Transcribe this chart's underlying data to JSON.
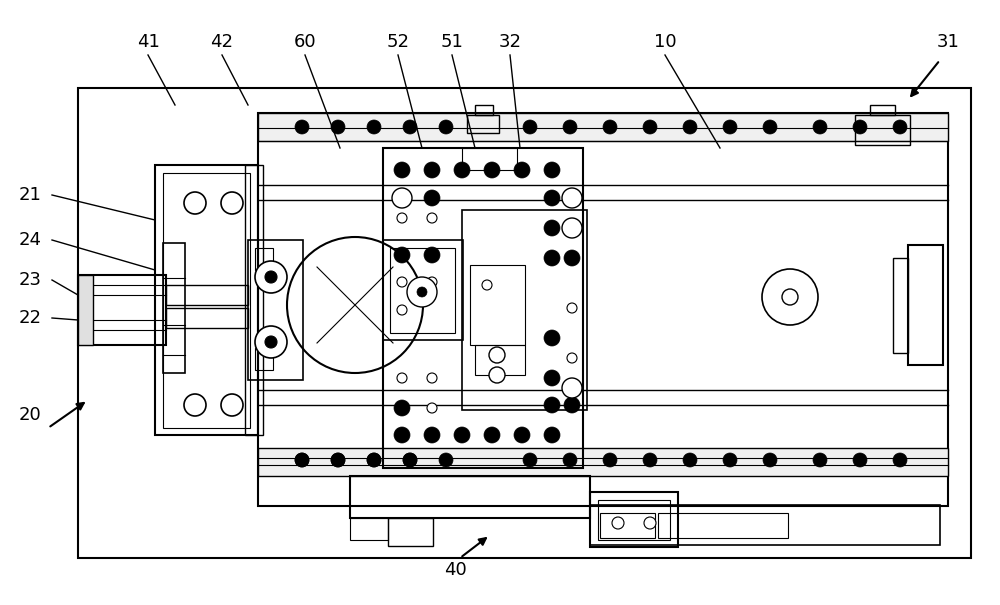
{
  "bg_color": "#ffffff",
  "lc": "#000000",
  "fig_width": 10.0,
  "fig_height": 6.05,
  "label_fontsize": 13
}
